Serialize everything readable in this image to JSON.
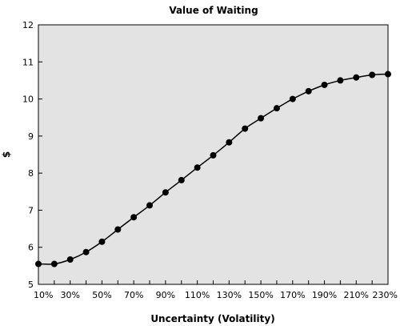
{
  "chart_data": {
    "type": "line",
    "title": "Value of Waiting",
    "xlabel": "Uncertainty (Volatility)",
    "ylabel": "$",
    "x": [
      "10%",
      "20%",
      "30%",
      "40%",
      "50%",
      "60%",
      "70%",
      "80%",
      "90%",
      "100%",
      "110%",
      "120%",
      "130%",
      "140%",
      "150%",
      "160%",
      "170%",
      "180%",
      "190%",
      "200%",
      "210%",
      "220%",
      "230%"
    ],
    "x_tick_labels": [
      "10%",
      "30%",
      "50%",
      "70%",
      "90%",
      "110%",
      "130%",
      "150%",
      "170%",
      "190%",
      "210%",
      "230%"
    ],
    "y_tick_labels": [
      "5",
      "6",
      "7",
      "8",
      "9",
      "10",
      "11",
      "12"
    ],
    "ylim": [
      5,
      12
    ],
    "series": [
      {
        "values": [
          5.55,
          5.55,
          5.67,
          5.87,
          6.15,
          6.48,
          6.81,
          7.13,
          7.48,
          7.81,
          8.15,
          8.48,
          8.83,
          9.2,
          9.48,
          9.75,
          10.0,
          10.21,
          10.38,
          10.5,
          10.58,
          10.65,
          10.67
        ]
      }
    ],
    "grid": false,
    "plot_background": "#e3e3e3",
    "line_color": "#000000",
    "marker_color": "#000000"
  }
}
